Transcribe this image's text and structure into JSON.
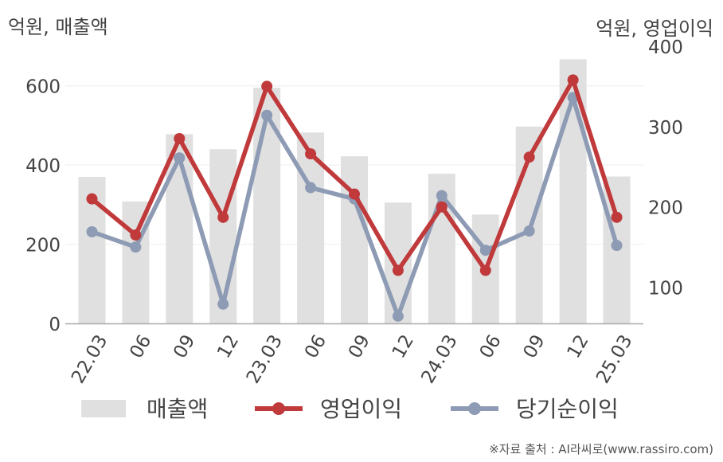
{
  "left_unit": "억원, 매출액",
  "right_unit": "억원, 영업이익",
  "source": "※자료 출처 : AI라씨로(www.rassiro.com)",
  "chart_data": {
    "type": "bar",
    "categories": [
      "22.03",
      "06",
      "09",
      "12",
      "23.03",
      "06",
      "09",
      "12",
      "24.03",
      "06",
      "09",
      "12",
      "25.03"
    ],
    "series": [
      {
        "name": "매출액",
        "type": "bar",
        "axis": "left",
        "color": "#e0e0e0",
        "values": [
          370,
          308,
          478,
          440,
          595,
          482,
          422,
          305,
          378,
          275,
          497,
          667,
          371
        ]
      },
      {
        "name": "영업이익",
        "type": "line",
        "axis": "right",
        "color": "#c0393b",
        "values": [
          210,
          165,
          285,
          187,
          350,
          266,
          216,
          121,
          200,
          121,
          262,
          358,
          187
        ]
      },
      {
        "name": "당기순이익",
        "type": "line",
        "axis": "right",
        "color": "#8e9bb4",
        "values": [
          169,
          150,
          261,
          79,
          314,
          224,
          210,
          64,
          214,
          146,
          170,
          336,
          152
        ]
      }
    ],
    "left_axis": {
      "ticks": [
        0,
        200,
        400,
        600
      ],
      "range": [
        0,
        700
      ]
    },
    "right_axis": {
      "ticks": [
        100,
        200,
        300,
        400
      ],
      "range": [
        55,
        400
      ]
    },
    "legend_position": "bottom"
  }
}
